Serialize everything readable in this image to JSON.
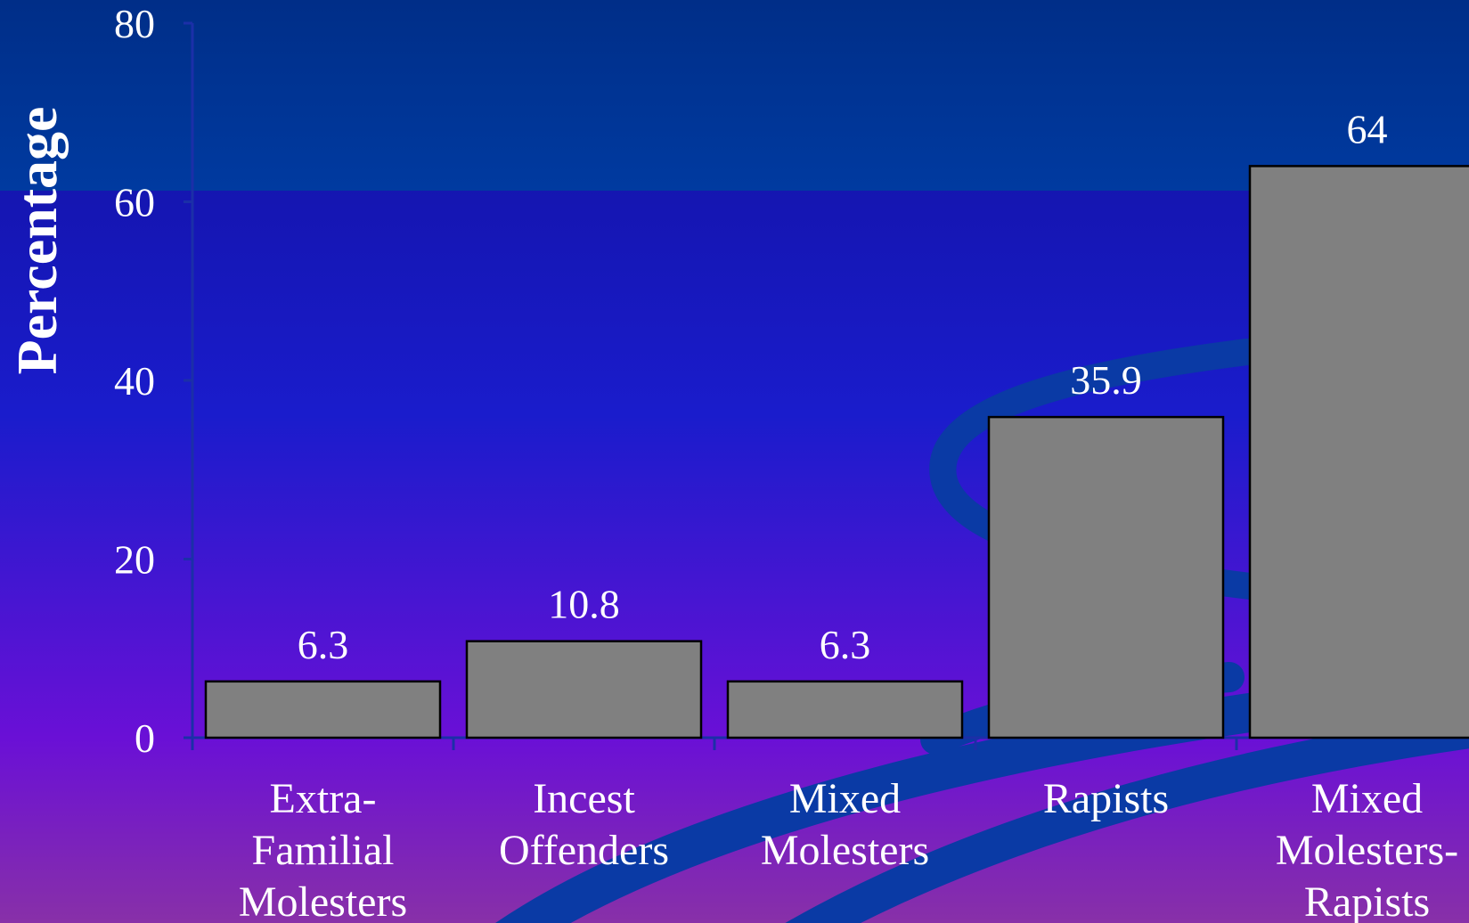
{
  "colors": {
    "bar_fill": "#808080",
    "bar_stroke": "#000000",
    "text": "#ffffff",
    "axis": "#1b2fa8",
    "band_top": "#00308a",
    "swirl": "#0a3aa5",
    "bg_top": "#10109a",
    "bg_mid": "#1a1ccc",
    "bg_low": "#6a10d6",
    "bg_bottom": "#8830a8"
  },
  "chart_data": {
    "type": "bar",
    "categories": [
      "Extra-Familial Molesters",
      "Incest Offenders",
      "Mixed Molesters",
      "Rapists",
      "Mixed Molesters-Rapists"
    ],
    "category_lines": [
      [
        "Extra-",
        "Familial",
        "Molesters"
      ],
      [
        "Incest",
        "Offenders"
      ],
      [
        "Mixed",
        "Molesters"
      ],
      [
        "Rapists"
      ],
      [
        "Mixed",
        "Molesters-",
        "Rapists"
      ]
    ],
    "values": [
      6.3,
      10.8,
      6.3,
      35.9,
      64
    ],
    "data_labels": [
      "6.3",
      "10.8",
      "6.3",
      "35.9",
      "64"
    ],
    "title": "",
    "xlabel": "",
    "ylabel": "Percentage",
    "ylim": [
      0,
      80
    ],
    "yticks": [
      0,
      20,
      40,
      60,
      80
    ],
    "ytick_labels": [
      "0",
      "20",
      "40",
      "60",
      "80"
    ],
    "grid": false,
    "legend": "none"
  }
}
